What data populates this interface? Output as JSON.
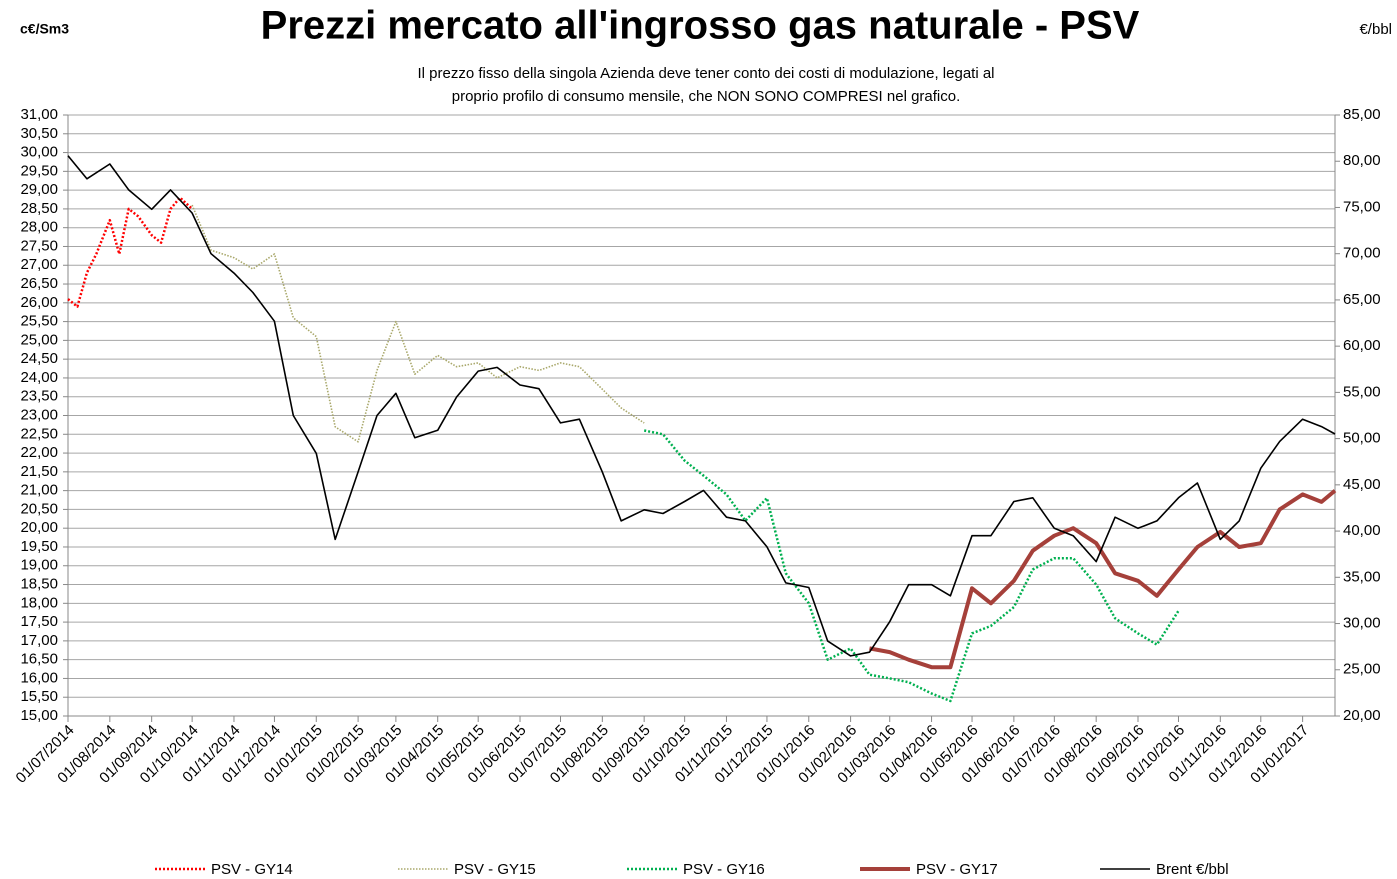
{
  "chart_data": {
    "type": "line",
    "title": "Prezzi mercato all'ingrosso gas naturale - PSV",
    "subtitle": [
      "Il prezzo fisso della singola  Azienda deve tener conto dei costi di modulazione, legati al",
      "proprio profilo di consumo mensile, che NON SONO COMPRESI nel grafico."
    ],
    "y_label": "c€/Sm3",
    "y2_label": "€/bbl",
    "xlim": [
      "01/07/2014",
      "25/01/2017"
    ],
    "xticks": [
      "01/07/2014",
      "01/08/2014",
      "01/09/2014",
      "01/10/2014",
      "01/11/2014",
      "01/12/2014",
      "01/01/2015",
      "01/02/2015",
      "01/03/2015",
      "01/04/2015",
      "01/05/2015",
      "01/06/2015",
      "01/07/2015",
      "01/08/2015",
      "01/09/2015",
      "01/10/2015",
      "01/11/2015",
      "01/12/2015",
      "01/01/2016",
      "01/02/2016",
      "01/03/2016",
      "01/04/2016",
      "01/05/2016",
      "01/06/2016",
      "01/07/2016",
      "01/08/2016",
      "01/09/2016",
      "01/10/2016",
      "01/11/2016",
      "01/12/2016",
      "01/01/2017"
    ],
    "ylim": [
      15,
      31
    ],
    "yticks": [
      {
        "value": 15,
        "label": "15,00"
      },
      {
        "value": 15.5,
        "label": "15,50"
      },
      {
        "value": 16,
        "label": "16,00"
      },
      {
        "value": 16.5,
        "label": "16,50"
      },
      {
        "value": 17,
        "label": "17,00"
      },
      {
        "value": 17.5,
        "label": "17,50"
      },
      {
        "value": 18,
        "label": "18,00"
      },
      {
        "value": 18.5,
        "label": "18,50"
      },
      {
        "value": 19,
        "label": "19,00"
      },
      {
        "value": 19.5,
        "label": "19,50"
      },
      {
        "value": 20,
        "label": "20,00"
      },
      {
        "value": 20.5,
        "label": "20,50"
      },
      {
        "value": 21,
        "label": "21,00"
      },
      {
        "value": 21.5,
        "label": "21,50"
      },
      {
        "value": 22,
        "label": "22,00"
      },
      {
        "value": 22.5,
        "label": "22,50"
      },
      {
        "value": 23,
        "label": "23,00"
      },
      {
        "value": 23.5,
        "label": "23,50"
      },
      {
        "value": 24,
        "label": "24,00"
      },
      {
        "value": 24.5,
        "label": "24,50"
      },
      {
        "value": 25,
        "label": "25,00"
      },
      {
        "value": 25.5,
        "label": "25,50"
      },
      {
        "value": 26,
        "label": "26,00"
      },
      {
        "value": 26.5,
        "label": "26,50"
      },
      {
        "value": 27,
        "label": "27,00"
      },
      {
        "value": 27.5,
        "label": "27,50"
      },
      {
        "value": 28,
        "label": "28,00"
      },
      {
        "value": 28.5,
        "label": "28,50"
      },
      {
        "value": 29,
        "label": "29,00"
      },
      {
        "value": 29.5,
        "label": "29,50"
      },
      {
        "value": 30,
        "label": "30,00"
      },
      {
        "value": 30.5,
        "label": "30,50"
      },
      {
        "value": 31,
        "label": "31,00"
      }
    ],
    "y2lim": [
      20,
      85
    ],
    "y2ticks": [
      {
        "value": 20,
        "label": "20,00"
      },
      {
        "value": 25,
        "label": "25,00"
      },
      {
        "value": 30,
        "label": "30,00"
      },
      {
        "value": 35,
        "label": "35,00"
      },
      {
        "value": 40,
        "label": "40,00"
      },
      {
        "value": 45,
        "label": "45,00"
      },
      {
        "value": 50,
        "label": "50,00"
      },
      {
        "value": 55,
        "label": "55,00"
      },
      {
        "value": 60,
        "label": "60,00"
      },
      {
        "value": 65,
        "label": "65,00"
      },
      {
        "value": 70,
        "label": "70,00"
      },
      {
        "value": 75,
        "label": "75,00"
      },
      {
        "value": 80,
        "label": "80,00"
      },
      {
        "value": 85,
        "label": "85,00"
      }
    ],
    "grid": true,
    "legend": "bottom",
    "series": [
      {
        "name": "PSV - GY14",
        "color": "#ff0000",
        "style": "dotted",
        "x": [
          "01/07/2014",
          "08/07/2014",
          "15/07/2014",
          "22/07/2014",
          "01/08/2014",
          "08/08/2014",
          "15/08/2014",
          "22/08/2014",
          "01/09/2014",
          "08/09/2014",
          "15/09/2014",
          "22/09/2014",
          "01/10/2014"
        ],
        "values": [
          26.1,
          25.9,
          26.8,
          27.3,
          28.2,
          27.3,
          28.5,
          28.3,
          27.8,
          27.6,
          28.5,
          28.8,
          28.5
        ]
      },
      {
        "name": "PSV - GY15",
        "color": "#a9a86b",
        "style": "dotted",
        "x": [
          "01/10/2014",
          "15/10/2014",
          "01/11/2014",
          "15/11/2014",
          "01/12/2014",
          "15/12/2014",
          "01/01/2015",
          "15/01/2015",
          "01/02/2015",
          "15/02/2015",
          "01/03/2015",
          "15/03/2015",
          "01/04/2015",
          "15/04/2015",
          "01/05/2015",
          "15/05/2015",
          "01/06/2015",
          "15/06/2015",
          "01/07/2015",
          "15/07/2015",
          "01/08/2015",
          "15/08/2015",
          "01/09/2015"
        ],
        "values": [
          28.6,
          27.4,
          27.2,
          26.9,
          27.3,
          25.6,
          25.1,
          22.7,
          22.3,
          24.2,
          25.5,
          24.1,
          24.6,
          24.3,
          24.4,
          24.0,
          24.3,
          24.2,
          24.4,
          24.3,
          23.7,
          23.2,
          22.8
        ]
      },
      {
        "name": "PSV - GY16",
        "color": "#00b050",
        "style": "dotted",
        "x": [
          "01/09/2015",
          "15/09/2015",
          "01/10/2015",
          "15/10/2015",
          "01/11/2015",
          "15/11/2015",
          "01/12/2015",
          "15/12/2015",
          "01/01/2016",
          "15/01/2016",
          "01/02/2016",
          "15/02/2016",
          "01/03/2016",
          "15/03/2016",
          "01/04/2016",
          "15/04/2016",
          "01/05/2016",
          "15/05/2016",
          "01/06/2016",
          "15/06/2016",
          "01/07/2016",
          "15/07/2016",
          "01/08/2016",
          "15/08/2016",
          "01/09/2016",
          "15/09/2016",
          "01/10/2016"
        ],
        "values": [
          22.6,
          22.5,
          21.8,
          21.4,
          20.9,
          20.2,
          20.8,
          18.8,
          18.0,
          16.5,
          16.8,
          16.1,
          16.0,
          15.9,
          15.6,
          15.4,
          17.2,
          17.4,
          17.9,
          18.9,
          19.2,
          19.2,
          18.5,
          17.6,
          17.2,
          16.9,
          17.8
        ]
      },
      {
        "name": "PSV - GY17",
        "color": "#a5403a",
        "style": "solid",
        "x": [
          "15/02/2016",
          "01/03/2016",
          "15/03/2016",
          "01/04/2016",
          "15/04/2016",
          "01/05/2016",
          "15/05/2016",
          "01/06/2016",
          "15/06/2016",
          "01/07/2016",
          "15/07/2016",
          "01/08/2016",
          "15/08/2016",
          "01/09/2016",
          "15/09/2016",
          "01/10/2016",
          "15/10/2016",
          "01/11/2016",
          "15/11/2016",
          "01/12/2016",
          "15/12/2016",
          "01/01/2017",
          "15/01/2017",
          "25/01/2017"
        ],
        "values": [
          16.8,
          16.7,
          16.5,
          16.3,
          16.3,
          18.4,
          18.0,
          18.6,
          19.4,
          19.8,
          20.0,
          19.6,
          18.8,
          18.6,
          18.2,
          18.9,
          19.5,
          19.9,
          19.5,
          19.6,
          20.5,
          20.9,
          20.7,
          21.0
        ]
      },
      {
        "name": "Brent €/bbl",
        "color": "#000000",
        "style": "solid",
        "axis": "y2",
        "x": [
          "01/07/2014",
          "15/07/2014",
          "01/08/2014",
          "15/08/2014",
          "01/09/2014",
          "15/09/2014",
          "01/10/2014",
          "15/10/2014",
          "01/11/2014",
          "15/11/2014",
          "01/12/2014",
          "15/12/2014",
          "01/01/2015",
          "15/01/2015",
          "01/02/2015",
          "15/02/2015",
          "01/03/2015",
          "15/03/2015",
          "01/04/2015",
          "15/04/2015",
          "01/05/2015",
          "15/05/2015",
          "01/06/2015",
          "15/06/2015",
          "01/07/2015",
          "15/07/2015",
          "01/08/2015",
          "15/08/2015",
          "01/09/2015",
          "15/09/2015",
          "01/10/2015",
          "15/10/2015",
          "01/11/2015",
          "15/11/2015",
          "01/12/2015",
          "15/12/2015",
          "01/01/2016",
          "15/01/2016",
          "01/02/2016",
          "15/02/2016",
          "01/03/2016",
          "15/03/2016",
          "01/04/2016",
          "15/04/2016",
          "01/05/2016",
          "15/05/2016",
          "01/06/2016",
          "15/06/2016",
          "01/07/2016",
          "15/07/2016",
          "01/08/2016",
          "15/08/2016",
          "01/09/2016",
          "15/09/2016",
          "01/10/2016",
          "15/10/2016",
          "01/11/2016",
          "15/11/2016",
          "01/12/2016",
          "15/12/2016",
          "01/01/2017",
          "15/01/2017",
          "25/01/2017"
        ],
        "values": [
          80.6,
          78.1,
          79.7,
          76.9,
          74.8,
          76.9,
          74.4,
          70.0,
          67.9,
          65.8,
          62.7,
          52.5,
          48.4,
          39.1,
          46.4,
          52.5,
          54.9,
          50.1,
          50.9,
          54.5,
          57.3,
          57.7,
          55.8,
          55.4,
          51.7,
          52.1,
          46.4,
          41.1,
          42.3,
          41.9,
          43.2,
          44.4,
          41.5,
          41.1,
          38.3,
          34.4,
          33.9,
          28.1,
          26.5,
          26.9,
          30.2,
          34.2,
          34.2,
          33.0,
          39.5,
          39.5,
          43.2,
          43.6,
          40.3,
          39.5,
          36.7,
          41.5,
          40.3,
          41.1,
          43.6,
          45.2,
          39.1,
          41.1,
          46.8,
          49.7,
          52.1,
          51.3,
          50.5
        ]
      }
    ]
  }
}
